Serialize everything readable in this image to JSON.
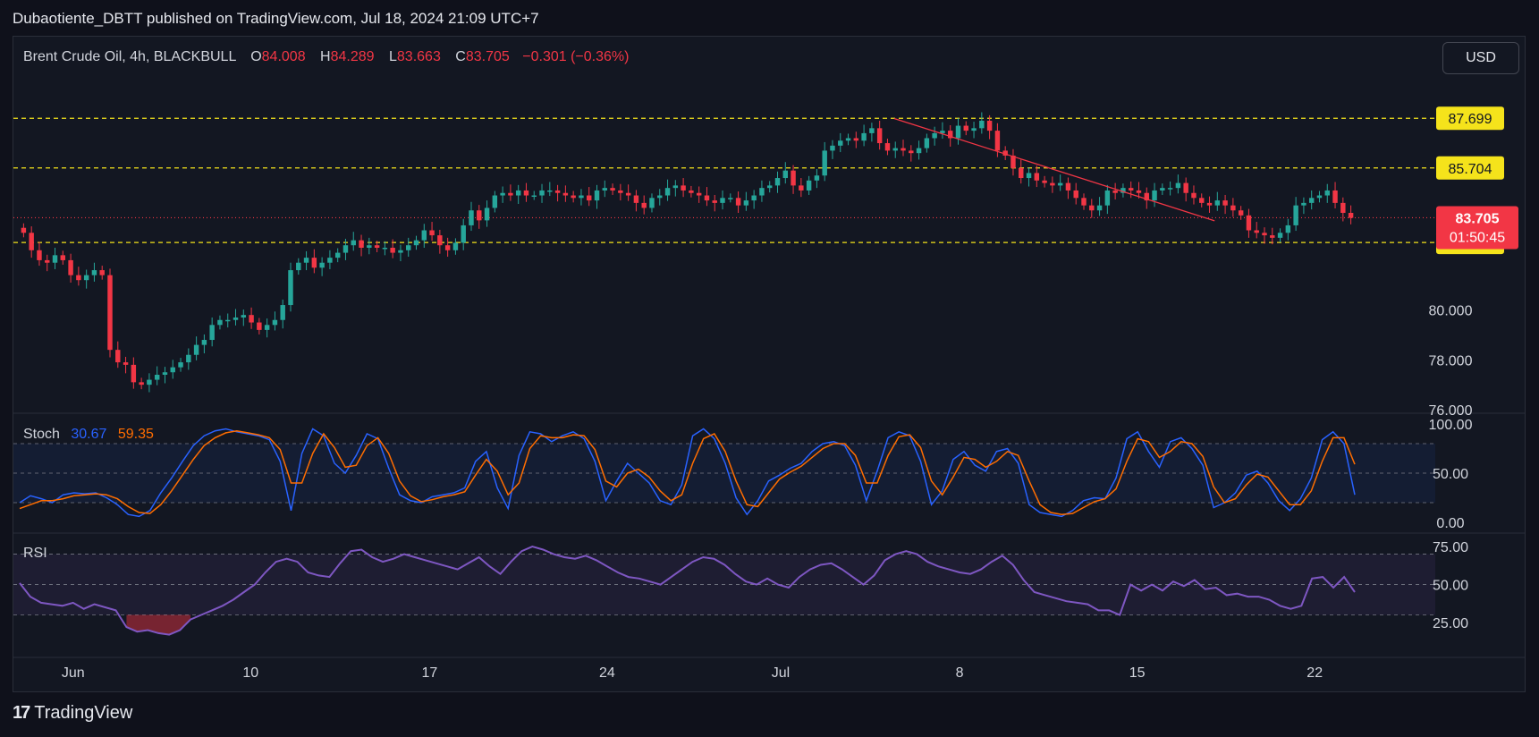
{
  "publisher_line": "Dubaotiente_DBTT published on TradingView.com, Jul 18, 2024 21:09 UTC+7",
  "symbol_line": "Brent Crude Oil, 4h, BLACKBULL",
  "ohlc": {
    "o_label": "O",
    "o": "84.008",
    "h_label": "H",
    "h": "84.289",
    "l_label": "L",
    "l": "83.663",
    "c_label": "C",
    "c": "83.705",
    "change": "−0.301 (−0.36%)"
  },
  "currency": "USD",
  "footer_brand": "TradingView",
  "colors": {
    "up": "#26a69a",
    "down": "#f23645",
    "level": "#f5e31b",
    "trend": "#f23645",
    "stoch_k": "#2962ff",
    "stoch_d": "#ff6d00",
    "rsi": "#7e57c2"
  },
  "chart_data": [
    {
      "type": "candlestick",
      "name": "Brent Crude Oil",
      "ylim": [
        76,
        89
      ],
      "y_ticks": [
        "80.000",
        "78.000",
        "76.000"
      ],
      "x_ticks": [
        "Jun",
        "10",
        "17",
        "24",
        "Jul",
        "8",
        "15",
        "22"
      ],
      "levels": [
        {
          "label": "87.699",
          "value": 87.699
        },
        {
          "label": "85.704",
          "value": 85.704
        },
        {
          "label": "82.712",
          "value": 82.712
        }
      ],
      "last_price": {
        "label": "83.705",
        "value": 83.705,
        "countdown": "01:50:45"
      },
      "trendline": [
        [
          0.655,
          87.69
        ],
        [
          0.895,
          83.58
        ]
      ],
      "close": [
        83.1,
        82.4,
        82.0,
        81.9,
        82.2,
        82.0,
        81.4,
        81.2,
        81.4,
        81.6,
        81.4,
        78.4,
        77.9,
        77.8,
        77.1,
        77.0,
        77.2,
        77.4,
        77.5,
        77.7,
        77.9,
        78.2,
        78.6,
        78.8,
        79.4,
        79.6,
        79.6,
        79.7,
        79.8,
        79.5,
        79.2,
        79.4,
        79.6,
        80.2,
        81.6,
        81.9,
        82.1,
        81.7,
        81.9,
        82.1,
        82.3,
        82.6,
        82.8,
        82.5,
        82.6,
        82.5,
        82.5,
        82.3,
        82.4,
        82.6,
        82.8,
        83.2,
        83.0,
        82.6,
        82.4,
        82.7,
        83.4,
        84.0,
        83.6,
        84.1,
        84.6,
        84.7,
        84.6,
        84.8,
        84.6,
        84.6,
        84.8,
        84.8,
        84.7,
        84.6,
        84.5,
        84.6,
        84.4,
        84.8,
        84.9,
        84.8,
        84.7,
        84.6,
        84.3,
        84.1,
        84.5,
        84.6,
        84.9,
        85.0,
        84.8,
        84.7,
        84.6,
        84.4,
        84.3,
        84.5,
        84.5,
        84.2,
        84.4,
        84.6,
        84.9,
        85.0,
        85.3,
        85.6,
        85.0,
        84.8,
        85.2,
        85.4,
        86.4,
        86.6,
        86.8,
        86.9,
        86.8,
        87.1,
        87.3,
        86.7,
        86.4,
        86.5,
        86.4,
        86.3,
        86.5,
        86.9,
        87.1,
        87.2,
        86.9,
        87.4,
        87.2,
        87.3,
        87.6,
        87.2,
        86.4,
        86.2,
        85.7,
        85.3,
        85.5,
        85.2,
        85.1,
        85.0,
        85.1,
        84.8,
        84.5,
        84.2,
        84.0,
        84.2,
        84.8,
        84.7,
        84.9,
        84.8,
        84.7,
        84.4,
        84.8,
        84.9,
        84.9,
        85.1,
        84.7,
        84.5,
        84.3,
        84.2,
        84.4,
        84.2,
        84.0,
        83.8,
        83.2,
        83.1,
        83.0,
        82.9,
        83.1,
        83.4,
        84.2,
        84.3,
        84.5,
        84.6,
        84.8,
        84.3,
        83.9,
        83.7
      ]
    },
    {
      "type": "line",
      "name": "Stoch",
      "values_label": {
        "k": "30.67",
        "d": "59.35"
      },
      "ylim": [
        0,
        100
      ],
      "y_ticks": [
        "100.00",
        "50.00",
        "0.00"
      ],
      "bands": [
        80,
        50,
        20
      ],
      "series": [
        {
          "name": "30.67",
          "values": [
            20,
            27,
            24,
            20,
            28,
            30,
            29,
            30,
            25,
            18,
            8,
            6,
            12,
            30,
            45,
            62,
            78,
            88,
            93,
            95,
            92,
            90,
            88,
            84,
            62,
            12,
            70,
            95,
            88,
            60,
            50,
            68,
            90,
            85,
            55,
            28,
            22,
            20,
            26,
            28,
            30,
            35,
            62,
            72,
            35,
            14,
            68,
            92,
            90,
            82,
            88,
            92,
            85,
            62,
            22,
            42,
            60,
            50,
            40,
            22,
            18,
            38,
            88,
            95,
            85,
            60,
            25,
            8,
            22,
            42,
            48,
            55,
            60,
            72,
            80,
            82,
            78,
            58,
            22,
            52,
            86,
            92,
            88,
            62,
            18,
            32,
            64,
            72,
            58,
            52,
            72,
            75,
            60,
            18,
            10,
            8,
            6,
            12,
            22,
            25,
            24,
            45,
            85,
            92,
            72,
            56,
            82,
            86,
            75,
            58,
            15,
            20,
            30,
            48,
            52,
            40,
            22,
            12,
            24,
            45,
            84,
            92,
            80,
            28
          ]
        },
        {
          "name": "59.35",
          "values": [
            14,
            18,
            22,
            22,
            24,
            27,
            28,
            29,
            28,
            24,
            16,
            10,
            9,
            18,
            32,
            48,
            64,
            78,
            86,
            91,
            93,
            91,
            89,
            86,
            74,
            40,
            40,
            70,
            90,
            76,
            56,
            58,
            78,
            86,
            70,
            42,
            27,
            21,
            23,
            26,
            28,
            31,
            48,
            64,
            52,
            28,
            40,
            75,
            88,
            86,
            86,
            89,
            88,
            74,
            42,
            36,
            50,
            54,
            46,
            32,
            22,
            28,
            60,
            85,
            90,
            72,
            42,
            18,
            16,
            30,
            44,
            51,
            57,
            66,
            75,
            80,
            80,
            68,
            40,
            40,
            68,
            87,
            89,
            76,
            42,
            28,
            46,
            66,
            64,
            56,
            62,
            72,
            68,
            42,
            18,
            10,
            8,
            9,
            15,
            21,
            24,
            34,
            62,
            85,
            82,
            66,
            72,
            82,
            80,
            67,
            36,
            20,
            24,
            38,
            49,
            46,
            32,
            18,
            18,
            32,
            62,
            86,
            86,
            59
          ]
        }
      ]
    },
    {
      "type": "line",
      "name": "RSI",
      "ylim": [
        15,
        78
      ],
      "y_ticks": [
        "75.00",
        "50.00",
        "25.00"
      ],
      "bands": [
        70,
        50,
        30
      ],
      "series": [
        {
          "name": "RSI",
          "values": [
            51,
            42,
            38,
            37,
            36,
            38,
            34,
            37,
            35,
            33,
            22,
            19,
            20,
            18,
            17,
            20,
            27,
            30,
            33,
            36,
            40,
            45,
            50,
            58,
            65,
            67,
            65,
            58,
            56,
            55,
            64,
            72,
            73,
            68,
            65,
            67,
            70,
            68,
            66,
            64,
            62,
            60,
            64,
            68,
            62,
            57,
            65,
            72,
            75,
            73,
            70,
            68,
            67,
            69,
            66,
            62,
            58,
            55,
            54,
            52,
            50,
            55,
            60,
            65,
            68,
            67,
            63,
            57,
            52,
            50,
            54,
            50,
            48,
            55,
            60,
            63,
            64,
            60,
            55,
            50,
            56,
            66,
            70,
            72,
            70,
            65,
            62,
            60,
            58,
            57,
            60,
            65,
            69,
            63,
            53,
            45,
            43,
            41,
            39,
            38,
            37,
            33,
            33,
            30,
            50,
            46,
            50,
            46,
            52,
            49,
            53,
            47,
            48,
            43,
            44,
            42,
            42,
            40,
            36,
            34,
            36,
            54,
            55,
            48,
            55,
            45
          ]
        }
      ]
    }
  ]
}
